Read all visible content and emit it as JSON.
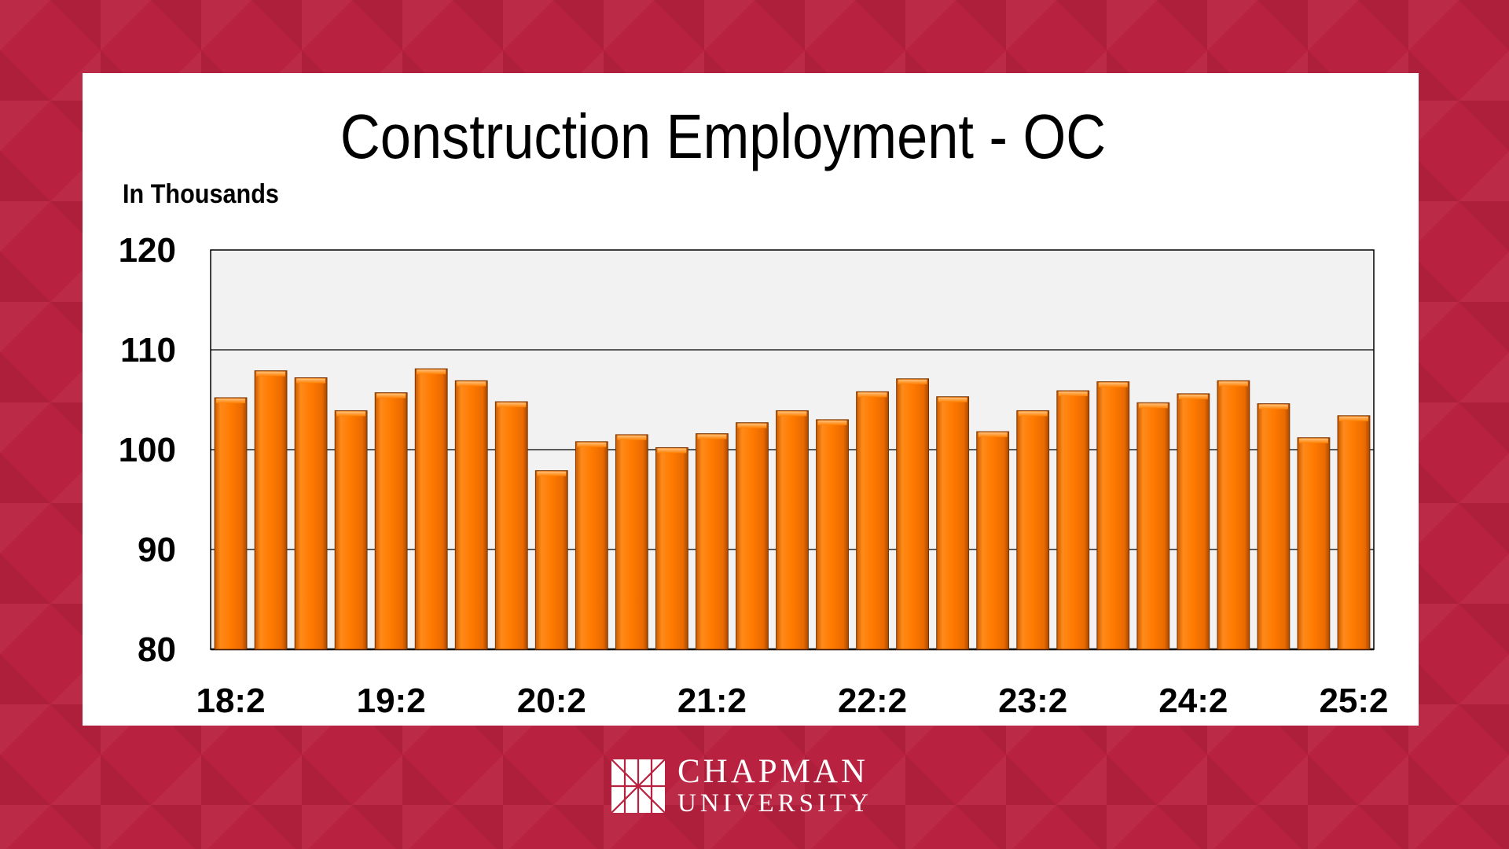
{
  "chart_data": {
    "type": "bar",
    "title": "Construction Employment - OC",
    "ylabel": "In Thousands",
    "xlabel": "",
    "ylim": [
      80,
      120
    ],
    "yticks": [
      80,
      90,
      100,
      110,
      120
    ],
    "grid": true,
    "categories": [
      "18:2",
      "",
      "",
      "",
      "19:2",
      "",
      "",
      "",
      "20:2",
      "",
      "",
      "",
      "21:2",
      "",
      "",
      "",
      "22:2",
      "",
      "",
      "",
      "23:2",
      "",
      "",
      "",
      "24:2",
      "",
      "",
      "",
      "25:2"
    ],
    "xtick_labels": [
      "18:2",
      "19:2",
      "20:2",
      "21:2",
      "22:2",
      "23:2",
      "24:2",
      "25:2"
    ],
    "values": [
      105.2,
      107.9,
      107.2,
      103.9,
      105.7,
      108.1,
      106.9,
      104.8,
      97.9,
      100.8,
      101.5,
      100.2,
      101.6,
      102.7,
      103.9,
      103.0,
      105.8,
      107.1,
      105.3,
      101.8,
      103.9,
      105.9,
      106.8,
      104.7,
      105.6,
      106.9,
      104.6,
      101.2,
      103.4
    ],
    "bar_color": "#ff7f00",
    "plot_background": "#f2f2f2"
  },
  "branding": {
    "logo_line1": "CHAPMAN",
    "logo_line2": "UNIVERSITY",
    "background_color": "#b8213f"
  }
}
